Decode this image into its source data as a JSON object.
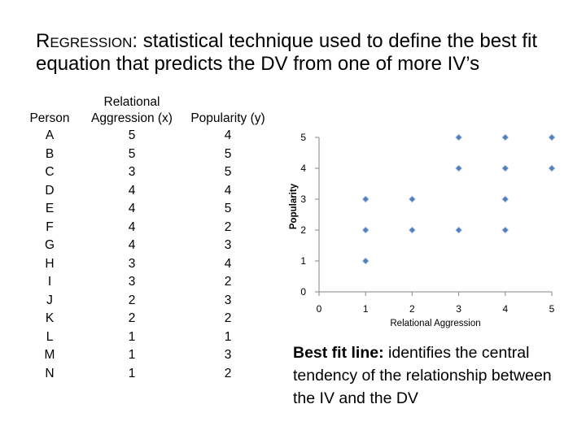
{
  "slide": {
    "title_term": "Regression",
    "title_rest": ": statistical technique used to define the best fit equation that predicts the DV from one of more IV’s",
    "note_term": "Best fit line:",
    "note_rest": " identifies the central tendency of the relationship between the IV and the DV"
  },
  "table": {
    "headers": [
      "Person",
      "Relational Aggression (x)",
      "Popularity (y)"
    ],
    "rows": [
      [
        "A",
        "5",
        "4"
      ],
      [
        "B",
        "5",
        "5"
      ],
      [
        "C",
        "3",
        "5"
      ],
      [
        "D",
        "4",
        "4"
      ],
      [
        "E",
        "4",
        "5"
      ],
      [
        "F",
        "4",
        "2"
      ],
      [
        "G",
        "4",
        "3"
      ],
      [
        "H",
        "3",
        "4"
      ],
      [
        "I",
        "3",
        "2"
      ],
      [
        "J",
        "2",
        "3"
      ],
      [
        "K",
        "2",
        "2"
      ],
      [
        "L",
        "1",
        "1"
      ],
      [
        "M",
        "1",
        "3"
      ],
      [
        "N",
        "1",
        "2"
      ]
    ]
  },
  "chart_data": {
    "type": "scatter",
    "xlabel": "Relational Aggression",
    "ylabel": "Popularity",
    "xlim": [
      0,
      5
    ],
    "ylim": [
      0,
      5
    ],
    "xticks": [
      "0",
      "1",
      "2",
      "3",
      "4",
      "5"
    ],
    "yticks": [
      "0",
      "1",
      "2",
      "3",
      "4",
      "5"
    ],
    "grid": false,
    "marker_color": "#4f81bd",
    "points": [
      {
        "x": 1,
        "y": 1
      },
      {
        "x": 1,
        "y": 2
      },
      {
        "x": 1,
        "y": 3
      },
      {
        "x": 2,
        "y": 2
      },
      {
        "x": 2,
        "y": 3
      },
      {
        "x": 3,
        "y": 2
      },
      {
        "x": 3,
        "y": 4
      },
      {
        "x": 3,
        "y": 5
      },
      {
        "x": 4,
        "y": 2
      },
      {
        "x": 4,
        "y": 3
      },
      {
        "x": 4,
        "y": 4
      },
      {
        "x": 4,
        "y": 5
      },
      {
        "x": 5,
        "y": 4
      },
      {
        "x": 5,
        "y": 5
      }
    ]
  }
}
